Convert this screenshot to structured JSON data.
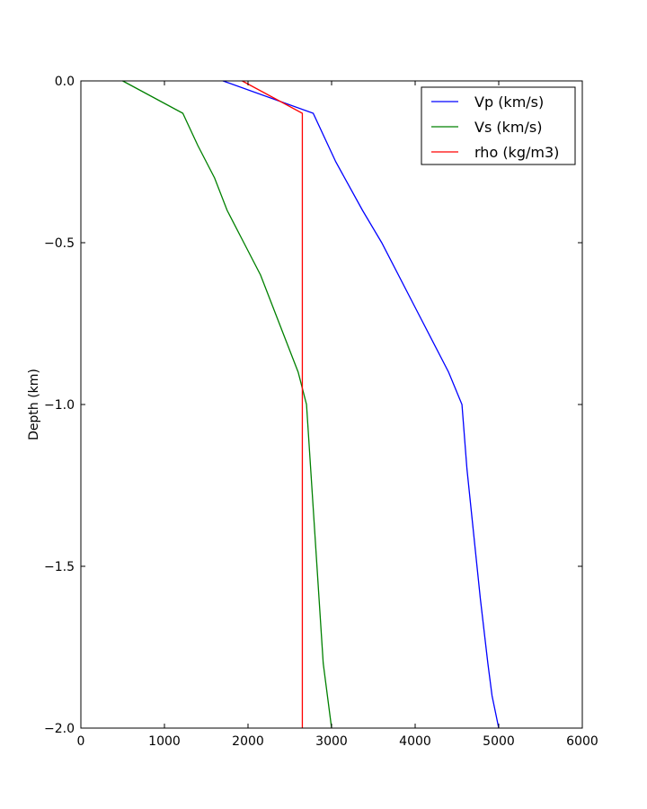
{
  "chart_data": {
    "type": "line",
    "title": "",
    "xlabel": "",
    "ylabel": "Depth (km)",
    "xlim": [
      0,
      6000
    ],
    "ylim": [
      -2.0,
      0.0
    ],
    "x_ticks": [
      0,
      1000,
      2000,
      3000,
      4000,
      5000,
      6000
    ],
    "x_tick_labels": [
      "0",
      "1000",
      "2000",
      "3000",
      "4000",
      "5000",
      "6000"
    ],
    "y_ticks": [
      0.0,
      -0.5,
      -1.0,
      -1.5,
      -2.0
    ],
    "y_tick_labels": [
      "0.0",
      "−0.5",
      "−1.0",
      "−1.5",
      "−2.0"
    ],
    "grid": false,
    "legend_position": "top-right",
    "series": [
      {
        "name": "Vp (km/s)",
        "color": "#0000ff",
        "points": [
          [
            1700,
            0.0
          ],
          [
            2780,
            -0.1
          ],
          [
            3050,
            -0.25
          ],
          [
            3370,
            -0.4
          ],
          [
            3600,
            -0.5
          ],
          [
            4000,
            -0.7
          ],
          [
            4400,
            -0.9
          ],
          [
            4560,
            -1.0
          ],
          [
            4620,
            -1.2
          ],
          [
            4700,
            -1.4
          ],
          [
            4780,
            -1.6
          ],
          [
            4870,
            -1.8
          ],
          [
            4920,
            -1.9
          ],
          [
            5000,
            -2.0
          ]
        ]
      },
      {
        "name": "Vs (km/s)",
        "color": "#008000",
        "points": [
          [
            500,
            0.0
          ],
          [
            1220,
            -0.1
          ],
          [
            1400,
            -0.2
          ],
          [
            1600,
            -0.3
          ],
          [
            1750,
            -0.4
          ],
          [
            1950,
            -0.5
          ],
          [
            2150,
            -0.6
          ],
          [
            2300,
            -0.7
          ],
          [
            2450,
            -0.8
          ],
          [
            2600,
            -0.9
          ],
          [
            2700,
            -1.0
          ],
          [
            2750,
            -1.2
          ],
          [
            2800,
            -1.4
          ],
          [
            2850,
            -1.6
          ],
          [
            2900,
            -1.8
          ],
          [
            3000,
            -2.0
          ]
        ]
      },
      {
        "name": "rho (kg/m3)",
        "color": "#ff0000",
        "points": [
          [
            1930,
            0.0
          ],
          [
            2650,
            -0.1
          ],
          [
            2650,
            -2.0
          ]
        ]
      }
    ]
  }
}
